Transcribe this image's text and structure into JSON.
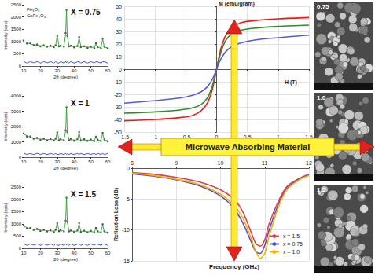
{
  "chart_data": [
    {
      "type": "scatter",
      "title": "X = 0.75",
      "annotations": [
        "Fe₃O₄",
        "CoFe₂O₄"
      ],
      "x_label": "2θ (degree)",
      "y_label": "Intensity (cps)",
      "x": [
        10,
        12,
        14,
        16,
        18,
        20,
        22,
        24,
        26,
        28,
        29,
        30,
        31,
        32,
        34,
        35,
        35.5,
        36,
        37,
        38,
        40,
        42,
        43,
        44,
        46,
        48,
        50,
        52,
        53,
        54,
        56,
        57,
        58,
        60
      ],
      "series": [
        {
          "type": "scatter",
          "marker": "circle",
          "color": "#222222",
          "values": [
            1040,
            920,
            930,
            850,
            880,
            800,
            850,
            790,
            830,
            770,
            850,
            1230,
            800,
            830,
            790,
            1340,
            2280,
            1230,
            800,
            830,
            760,
            820,
            1180,
            770,
            810,
            740,
            790,
            730,
            930,
            780,
            730,
            1120,
            790,
            720
          ]
        },
        {
          "type": "line",
          "line_style": "solid",
          "color": "#2ca02c",
          "values": [
            1000,
            950,
            900,
            870,
            850,
            830,
            820,
            810,
            800,
            800,
            820,
            1250,
            830,
            800,
            820,
            1300,
            2300,
            1200,
            830,
            800,
            790,
            800,
            1150,
            800,
            780,
            770,
            760,
            760,
            900,
            760,
            760,
            1100,
            760,
            750
          ]
        },
        {
          "type": "line",
          "line_style": "solid",
          "color": "#2b3fd0",
          "values": [
            190,
            120,
            180,
            130,
            180,
            120,
            180,
            130,
            180,
            120,
            180,
            130,
            120,
            180,
            120,
            190,
            130,
            180,
            120,
            180,
            120,
            170,
            180,
            120,
            180,
            120,
            180,
            120,
            180,
            170,
            120,
            170,
            180,
            120
          ]
        }
      ],
      "xlim": [
        10,
        60
      ],
      "xticks": [
        10,
        20,
        30,
        40,
        50,
        60
      ],
      "ylim": [
        0,
        2500
      ],
      "yticks": [
        0,
        500,
        1000,
        1500,
        2000,
        2500
      ],
      "grid": false
    },
    {
      "type": "scatter",
      "title": "X = 1",
      "x_label": "2θ (degree)",
      "y_label": "Intensity (cps)",
      "x": [
        10,
        12,
        14,
        16,
        18,
        20,
        22,
        24,
        26,
        28,
        29,
        30,
        31,
        32,
        34,
        35,
        35.5,
        36,
        37,
        38,
        40,
        42,
        43,
        44,
        46,
        48,
        50,
        52,
        53,
        54,
        56,
        57,
        58,
        60
      ],
      "series": [
        {
          "type": "scatter",
          "marker": "circle",
          "color": "#222222",
          "values": [
            1550,
            1350,
            1350,
            1200,
            1260,
            1130,
            1210,
            1100,
            1190,
            1080,
            1200,
            1620,
            1100,
            1180,
            1100,
            1750,
            3250,
            1650,
            1100,
            1180,
            1070,
            1180,
            1640,
            1080,
            1170,
            1060,
            1150,
            1050,
            1330,
            1150,
            1050,
            1580,
            1150,
            1030
          ]
        },
        {
          "type": "line",
          "line_style": "solid",
          "color": "#2ca02c",
          "values": [
            1500,
            1400,
            1300,
            1250,
            1200,
            1180,
            1160,
            1150,
            1140,
            1130,
            1150,
            1650,
            1150,
            1130,
            1150,
            1700,
            3300,
            1600,
            1150,
            1130,
            1120,
            1130,
            1600,
            1130,
            1120,
            1110,
            1100,
            1100,
            1300,
            1100,
            1100,
            1550,
            1100,
            1080
          ]
        },
        {
          "type": "line",
          "line_style": "solid",
          "color": "#2b3fd0",
          "values": [
            250,
            180,
            240,
            170,
            250,
            180,
            240,
            170,
            240,
            180,
            240,
            170,
            180,
            240,
            170,
            250,
            180,
            240,
            170,
            240,
            170,
            240,
            180,
            240,
            170,
            240,
            180,
            240,
            170,
            240,
            180,
            240,
            170,
            240
          ]
        }
      ],
      "xlim": [
        10,
        60
      ],
      "xticks": [
        10,
        20,
        30,
        40,
        50,
        60
      ],
      "ylim": [
        0,
        4000
      ],
      "yticks": [
        0,
        1000,
        2000,
        3000,
        4000
      ],
      "grid": false
    },
    {
      "type": "scatter",
      "title": "X = 1.5",
      "x_label": "2θ (degree)",
      "y_label": "Intensity (cps)",
      "x": [
        10,
        12,
        14,
        16,
        18,
        20,
        22,
        24,
        26,
        28,
        29,
        30,
        31,
        32,
        34,
        35,
        35.5,
        36,
        37,
        38,
        40,
        42,
        43,
        44,
        46,
        48,
        50,
        52,
        53,
        54,
        56,
        57,
        58,
        60
      ],
      "series": [
        {
          "type": "scatter",
          "marker": "circle",
          "color": "#222222",
          "values": [
            930,
            820,
            830,
            750,
            790,
            710,
            760,
            690,
            740,
            670,
            750,
            1030,
            700,
            740,
            690,
            1130,
            2060,
            1080,
            690,
            730,
            670,
            730,
            1030,
            670,
            720,
            650,
            710,
            640,
            830,
            700,
            640,
            980,
            700,
            630
          ]
        },
        {
          "type": "line",
          "line_style": "solid",
          "color": "#2ca02c",
          "values": [
            900,
            850,
            800,
            780,
            760,
            740,
            730,
            720,
            710,
            700,
            720,
            1050,
            730,
            710,
            720,
            1100,
            2100,
            1050,
            720,
            700,
            700,
            700,
            1000,
            700,
            690,
            680,
            680,
            670,
            800,
            670,
            670,
            950,
            670,
            660
          ]
        },
        {
          "type": "line",
          "line_style": "solid",
          "color": "#2b3fd0",
          "values": [
            190,
            120,
            180,
            130,
            180,
            120,
            180,
            130,
            180,
            120,
            180,
            130,
            120,
            180,
            120,
            190,
            130,
            180,
            120,
            180,
            120,
            170,
            180,
            120,
            180,
            120,
            180,
            120,
            180,
            170,
            120,
            170,
            180,
            120
          ]
        }
      ],
      "xlim": [
        10,
        60
      ],
      "xticks": [
        10,
        20,
        30,
        40,
        50,
        60
      ],
      "ylim": [
        0,
        2500
      ],
      "yticks": [
        0,
        500,
        1000,
        1500,
        2000,
        2500
      ],
      "grid": false
    },
    {
      "type": "line",
      "x_label": "H (T)",
      "y_label": "M (emu/gram)",
      "x": [
        -1.5,
        -1,
        -0.6,
        -0.4,
        -0.25,
        -0.15,
        -0.08,
        -0.04,
        0,
        0.04,
        0.08,
        0.15,
        0.25,
        0.4,
        0.6,
        1,
        1.5
      ],
      "series": [
        {
          "color": "#e0201b",
          "line_style": "solid",
          "values": [
            -41,
            -40,
            -38.5,
            -37,
            -33,
            -27,
            -18,
            -10,
            0,
            10,
            18,
            27,
            33,
            37,
            38.5,
            40,
            41
          ]
        },
        {
          "color": "#2e8b2e",
          "line_style": "solid",
          "values": [
            -35,
            -34,
            -32.5,
            -31,
            -28,
            -23,
            -15,
            -8,
            0,
            8,
            15,
            23,
            28,
            31,
            32.5,
            34,
            35
          ]
        },
        {
          "color": "#5a5ad6",
          "line_style": "solid",
          "values": [
            -27,
            -25,
            -23,
            -21,
            -18,
            -14,
            -9,
            -5,
            0,
            5,
            9,
            14,
            18,
            21,
            23,
            25,
            27
          ]
        }
      ],
      "xlim": [
        -1.5,
        1.5
      ],
      "xticks": [
        -1.5,
        -1,
        -0.5,
        0,
        0.5,
        1,
        1.5
      ],
      "ylim": [
        -50,
        50
      ],
      "yticks": [
        -50,
        -40,
        -30,
        -20,
        -10,
        0,
        10,
        20,
        30,
        40,
        50
      ],
      "grid": true
    },
    {
      "type": "line",
      "x_label": "Frequency (GHz)",
      "y_label": "Reflection Loss (dB)",
      "x": [
        8,
        8.5,
        9,
        9.5,
        10,
        10.3,
        10.5,
        10.7,
        10.8,
        10.9,
        11,
        11.1,
        11.3,
        11.5,
        11.8,
        12
      ],
      "series": [
        {
          "name": "x = 1.5",
          "color": "#e0404a",
          "line_style": "solid",
          "values": [
            -0.7,
            -1,
            -1.5,
            -2.2,
            -3.5,
            -5,
            -7,
            -10.5,
            -12.2,
            -12.6,
            -11.6,
            -9,
            -5.5,
            -3,
            -1.6,
            -1
          ]
        },
        {
          "name": "x = 0.75",
          "color": "#5a4fd0",
          "line_style": "solid",
          "values": [
            -0.9,
            -1.3,
            -1.9,
            -2.8,
            -4.5,
            -6.5,
            -8.8,
            -12,
            -13.5,
            -13.8,
            -12.5,
            -10,
            -6,
            -3.3,
            -1.7,
            -1.1
          ]
        },
        {
          "name": "x = 1.0",
          "color": "#f0b400",
          "line_style": "solid",
          "values": [
            -0.8,
            -1.2,
            -1.8,
            -2.6,
            -4.2,
            -6,
            -8,
            -11.5,
            -13.5,
            -14.6,
            -13.8,
            -11,
            -6.5,
            -3.5,
            -1.8,
            -1.2
          ]
        }
      ],
      "xlim": [
        8,
        12
      ],
      "xticks": [
        8,
        9,
        10,
        11,
        12
      ],
      "ylim": [
        -15,
        0
      ],
      "yticks": [
        -15,
        -10,
        -5,
        0
      ],
      "grid": true,
      "legend": "lower right"
    }
  ],
  "banner": "Microwave Absorbing Material",
  "micrographs": [
    {
      "label": "0.75"
    },
    {
      "label": "1.0"
    },
    {
      "label": "1.5"
    }
  ]
}
